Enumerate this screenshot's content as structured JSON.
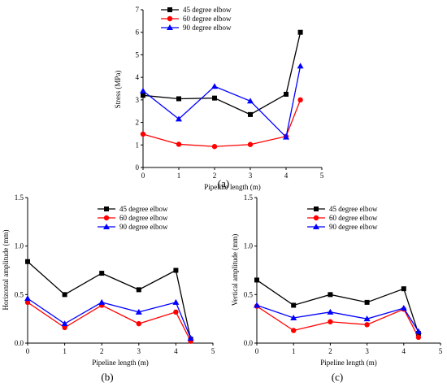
{
  "colors": {
    "45 degree elbow": "#000000",
    "60 degree elbow": "#ff0000",
    "90 degree elbow": "#0000ff"
  },
  "chart_data": [
    {
      "panel": "(a)",
      "type": "line",
      "xlabel": "Pipeline length (m)",
      "ylabel": "Stress (MPa)",
      "xlim": [
        0,
        5
      ],
      "ylim": [
        0,
        7
      ],
      "xticks": [
        "0",
        "1",
        "2",
        "3",
        "4",
        "5"
      ],
      "yticks": [
        "0",
        "1",
        "2",
        "3",
        "4",
        "5",
        "6",
        "7"
      ],
      "grid": false,
      "legend_position": "top-left",
      "series": [
        {
          "name": "45 degree elbow",
          "marker": "square",
          "x": [
            0,
            1,
            2,
            3,
            4,
            4.4
          ],
          "y": [
            3.2,
            3.05,
            3.08,
            2.35,
            3.25,
            6.0
          ]
        },
        {
          "name": "60 degree elbow",
          "marker": "circle",
          "x": [
            0,
            1,
            2,
            3,
            4,
            4.4
          ],
          "y": [
            1.48,
            1.03,
            0.93,
            1.02,
            1.38,
            3.0
          ]
        },
        {
          "name": "90 degree elbow",
          "marker": "triangle",
          "x": [
            0,
            1,
            2,
            3,
            4,
            4.4
          ],
          "y": [
            3.4,
            2.15,
            3.6,
            2.95,
            1.35,
            4.5
          ]
        }
      ]
    },
    {
      "panel": "(b)",
      "type": "line",
      "xlabel": "Pipeline length (m)",
      "ylabel": "Horizontal amplitude (mm)",
      "xlim": [
        0,
        5
      ],
      "ylim": [
        0,
        1.5
      ],
      "xticks": [
        "0",
        "1",
        "2",
        "3",
        "4",
        "5"
      ],
      "yticks": [
        "0.0",
        "0.5",
        "1.0",
        "1.5"
      ],
      "grid": false,
      "legend_position": "top-right",
      "series": [
        {
          "name": "45 degree elbow",
          "marker": "square",
          "x": [
            0,
            1,
            2,
            3,
            4,
            4.4
          ],
          "y": [
            0.84,
            0.5,
            0.72,
            0.55,
            0.75,
            0.04
          ]
        },
        {
          "name": "60 degree elbow",
          "marker": "circle",
          "x": [
            0,
            1,
            2,
            3,
            4,
            4.4
          ],
          "y": [
            0.42,
            0.16,
            0.39,
            0.2,
            0.32,
            0.02
          ]
        },
        {
          "name": "90 degree elbow",
          "marker": "triangle",
          "x": [
            0,
            1,
            2,
            3,
            4,
            4.4
          ],
          "y": [
            0.46,
            0.2,
            0.42,
            0.32,
            0.42,
            0.05
          ]
        }
      ]
    },
    {
      "panel": "(c)",
      "type": "line",
      "xlabel": "Pipeline length (m)",
      "ylabel": "Vertical amplitude (mm)",
      "xlim": [
        0,
        5
      ],
      "ylim": [
        0,
        1.5
      ],
      "xticks": [
        "0",
        "1",
        "2",
        "3",
        "4",
        "5"
      ],
      "yticks": [
        "0.0",
        "0.5",
        "1.0",
        "1.5"
      ],
      "grid": false,
      "legend_position": "top-right",
      "series": [
        {
          "name": "45 degree elbow",
          "marker": "square",
          "x": [
            0,
            1,
            2,
            3,
            4,
            4.4
          ],
          "y": [
            0.65,
            0.39,
            0.5,
            0.42,
            0.56,
            0.1
          ]
        },
        {
          "name": "60 degree elbow",
          "marker": "circle",
          "x": [
            0,
            1,
            2,
            3,
            4,
            4.4
          ],
          "y": [
            0.38,
            0.13,
            0.22,
            0.19,
            0.35,
            0.06
          ]
        },
        {
          "name": "90 degree elbow",
          "marker": "triangle",
          "x": [
            0,
            1,
            2,
            3,
            4,
            4.4
          ],
          "y": [
            0.39,
            0.26,
            0.32,
            0.25,
            0.36,
            0.12
          ]
        }
      ]
    }
  ]
}
